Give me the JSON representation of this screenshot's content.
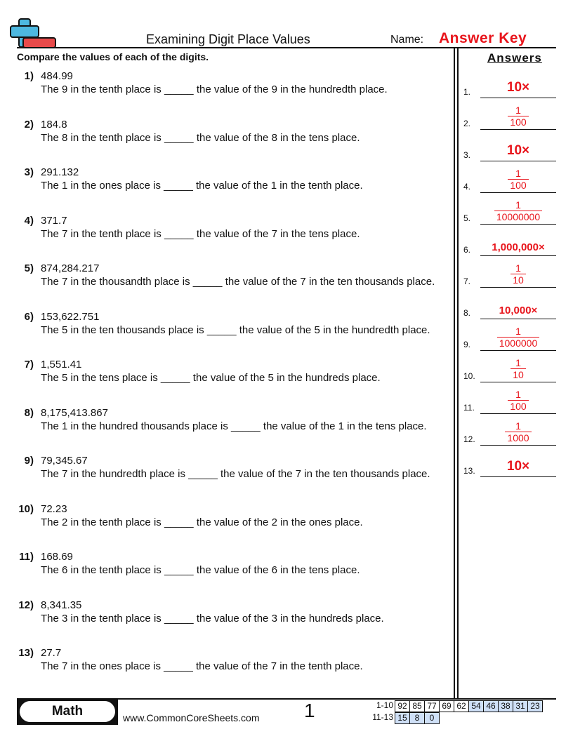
{
  "header": {
    "title": "Examining Digit Place Values",
    "name_label": "Name:",
    "answer_key": "Answer Key",
    "logo": "plus-minus-logo"
  },
  "instructions": "Compare the values of each of the digits.",
  "problems": [
    {
      "num": "1)",
      "value": "484.99",
      "sentence": "The 9 in the tenth place is _____ the value of the 9 in the hundredth place."
    },
    {
      "num": "2)",
      "value": "184.8",
      "sentence": "The 8 in the tenth place is _____ the value of the 8 in the tens place."
    },
    {
      "num": "3)",
      "value": "291.132",
      "sentence": "The 1 in the ones place is _____ the value of the 1 in the tenth place."
    },
    {
      "num": "4)",
      "value": "371.7",
      "sentence": "The 7 in the tenth place is _____ the value of the 7 in the tens place."
    },
    {
      "num": "5)",
      "value": "874,284.217",
      "sentence": "The 7 in the thousandth place is _____ the value of the 7 in the ten thousands place."
    },
    {
      "num": "6)",
      "value": "153,622.751",
      "sentence": "The 5 in the ten thousands place is _____ the value of the 5 in the hundredth place."
    },
    {
      "num": "7)",
      "value": "1,551.41",
      "sentence": "The 5 in the tens place is _____ the value of the 5 in the hundreds place."
    },
    {
      "num": "8)",
      "value": "8,175,413.867",
      "sentence": "The 1 in the hundred thousands place is _____ the value of the 1 in the tens place."
    },
    {
      "num": "9)",
      "value": "79,345.67",
      "sentence": "The 7 in the hundredth place is _____ the value of the 7 in the ten thousands place."
    },
    {
      "num": "10)",
      "value": "72.23",
      "sentence": "The 2 in the tenth place is _____ the value of the 2 in the ones place."
    },
    {
      "num": "11)",
      "value": "168.69",
      "sentence": "The 6 in the tenth place is _____ the value of the 6 in the tens place."
    },
    {
      "num": "12)",
      "value": "8,341.35",
      "sentence": "The 3 in the tenth place is _____ the value of the 3 in the hundreds place."
    },
    {
      "num": "13)",
      "value": "27.7",
      "sentence": "The 7 in the ones place is _____ the value of the 7 in the tenth place."
    }
  ],
  "answers": {
    "heading": "Answers",
    "items": [
      {
        "label": "1.",
        "text": "10×"
      },
      {
        "label": "2.",
        "num": "1",
        "den": "100"
      },
      {
        "label": "3.",
        "text": "10×"
      },
      {
        "label": "4.",
        "num": "1",
        "den": "100"
      },
      {
        "label": "5.",
        "num": "1",
        "den": "10000000"
      },
      {
        "label": "6.",
        "text": "1,000,000×"
      },
      {
        "label": "7.",
        "num": "1",
        "den": "10"
      },
      {
        "label": "8.",
        "text": "10,000×"
      },
      {
        "label": "9.",
        "num": "1",
        "den": "1000000"
      },
      {
        "label": "10.",
        "num": "1",
        "den": "10"
      },
      {
        "label": "11.",
        "num": "1",
        "den": "100"
      },
      {
        "label": "12.",
        "num": "1",
        "den": "1000"
      },
      {
        "label": "13.",
        "text": "10×"
      }
    ]
  },
  "footer": {
    "subject": "Math",
    "url": "www.CommonCoreSheets.com",
    "page": "1",
    "scores": [
      {
        "range": "1-10",
        "values": [
          "92",
          "85",
          "77",
          "69",
          "62",
          "54",
          "46",
          "38",
          "31",
          "23"
        ]
      },
      {
        "range": "11-13",
        "values": [
          "15",
          "8",
          "0"
        ]
      }
    ]
  },
  "colors": {
    "answer_red": "#e8141b",
    "logo_blue": "#4db8e0",
    "logo_red": "#e84a4a",
    "score_blue": "#cfe0f7"
  }
}
